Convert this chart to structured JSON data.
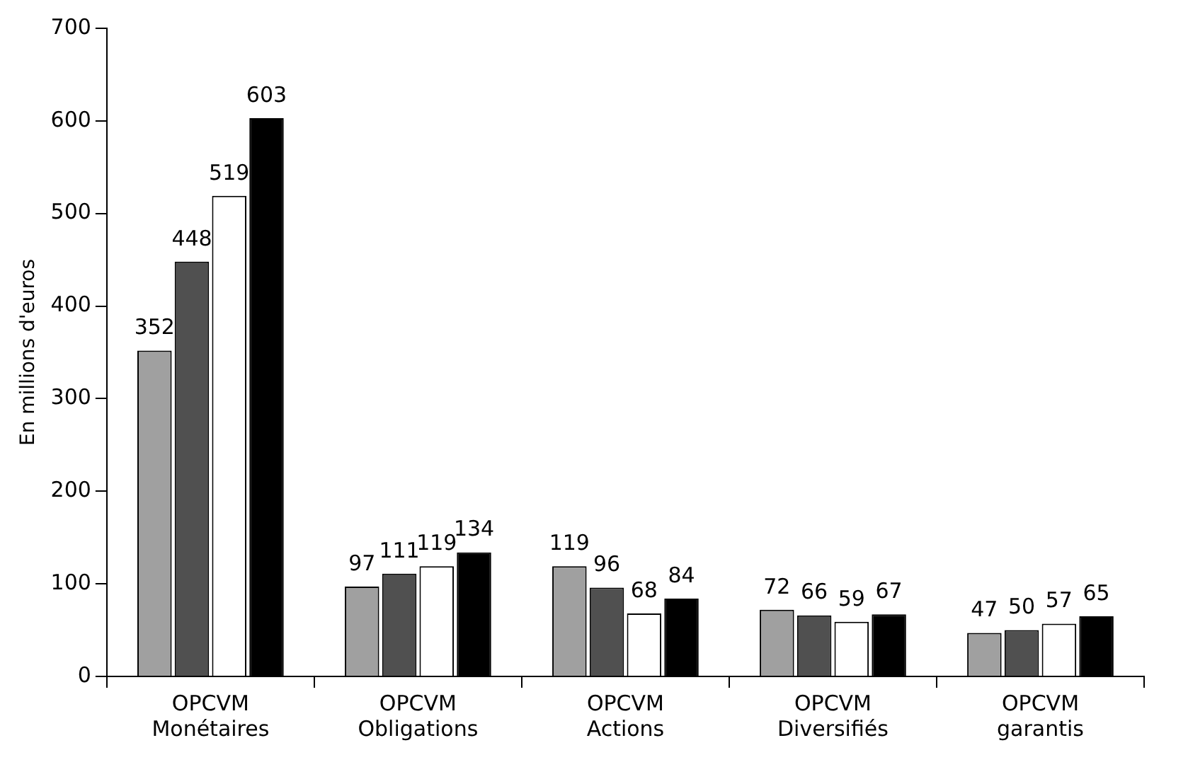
{
  "chart_data": {
    "type": "bar",
    "ylabel": "En millions d'euros",
    "categories": [
      "OPCVM Monétaires",
      "OPCVM Obligations",
      "OPCVM Actions",
      "OPCVM Diversifiés",
      "OPCVM garantis"
    ],
    "series": [
      {
        "color": "#a0a0a0",
        "values": [
          352,
          97,
          119,
          72,
          47
        ]
      },
      {
        "color": "#505050",
        "values": [
          448,
          111,
          96,
          66,
          50
        ]
      },
      {
        "color": "#ffffff",
        "values": [
          519,
          119,
          68,
          59,
          57
        ]
      },
      {
        "color": "#000000",
        "values": [
          603,
          134,
          84,
          67,
          65
        ]
      }
    ],
    "ylim": [
      0,
      700
    ],
    "yticks": [
      0,
      100,
      200,
      300,
      400,
      500,
      600,
      700
    ],
    "grid": false,
    "legend": false,
    "data_labels": true
  }
}
